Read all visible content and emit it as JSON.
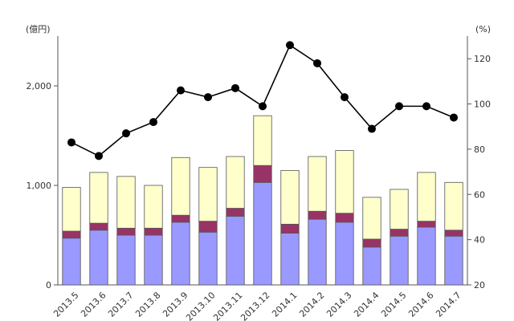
{
  "chart_data": {
    "type": "bar",
    "title": "",
    "left_unit": "(億円)",
    "right_unit": "(%)",
    "categories": [
      "2013.5",
      "2013.6",
      "2013.7",
      "2013.8",
      "2013.9",
      "2013.10",
      "2013.11",
      "2013.12",
      "2014.1",
      "2014.2",
      "2014.3",
      "2014.4",
      "2014.5",
      "2014.6",
      "2014.7"
    ],
    "left_axis": {
      "min": 0,
      "max": 2500,
      "ticks": [
        0,
        1000,
        2000
      ],
      "tick_labels": [
        "0",
        "1,000",
        "2,000"
      ]
    },
    "right_axis": {
      "min": 20,
      "max": 130,
      "ticks": [
        20,
        40,
        60,
        80,
        100,
        120
      ],
      "tick_labels": [
        "20",
        "40",
        "60",
        "80",
        "100",
        "120"
      ]
    },
    "stacked_series": [
      {
        "name": "",
        "color": "#9999ff",
        "values": [
          470,
          550,
          500,
          500,
          630,
          530,
          690,
          1030,
          520,
          660,
          630,
          380,
          490,
          580,
          490
        ]
      },
      {
        "name": "",
        "color": "#993366",
        "values": [
          70,
          70,
          70,
          70,
          70,
          110,
          80,
          170,
          90,
          80,
          90,
          80,
          70,
          60,
          60
        ]
      },
      {
        "name": "",
        "color": "#ffffcc",
        "values": [
          440,
          510,
          520,
          430,
          580,
          540,
          520,
          500,
          540,
          550,
          630,
          420,
          400,
          490,
          480
        ]
      }
    ],
    "line_series": {
      "name": "",
      "axis": "right",
      "color": "#000000",
      "values": [
        83,
        77,
        87,
        92,
        106,
        103,
        107,
        99,
        126,
        118,
        103,
        89,
        99,
        99,
        94
      ]
    },
    "grid": false,
    "legend": "none"
  }
}
